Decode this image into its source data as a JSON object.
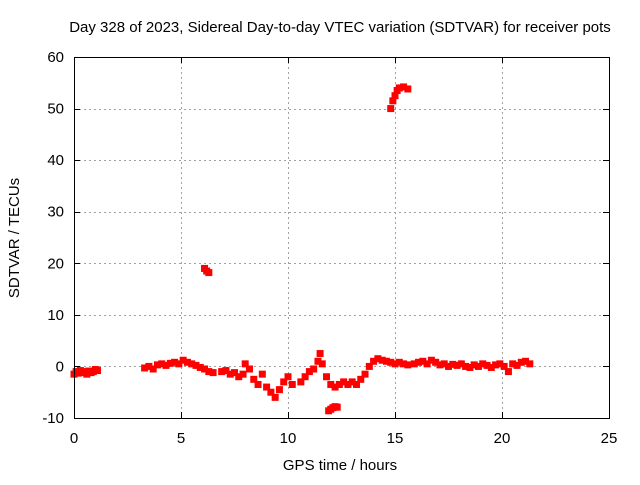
{
  "chart_data": {
    "type": "scatter",
    "title": "Day 328 of 2023, Sidereal Day-to-day VTEC variation (SDTVAR) for receiver pots",
    "xlabel": "GPS time / hours",
    "ylabel": "SDTVAR / TECUs",
    "xlim": [
      0,
      25
    ],
    "ylim": [
      -10,
      60
    ],
    "xticks": [
      0,
      5,
      10,
      15,
      20,
      25
    ],
    "yticks": [
      -10,
      0,
      10,
      20,
      30,
      40,
      50,
      60
    ],
    "xtick_labels": [
      "0",
      "5",
      "10",
      "15",
      "20",
      "25"
    ],
    "ytick_labels": [
      "-10",
      "0",
      "10",
      "20",
      "30",
      "40",
      "50",
      "60"
    ],
    "grid": true,
    "color": "#ff0000",
    "series": [
      {
        "name": "SDTVAR",
        "x": [
          0.0,
          0.1,
          0.2,
          0.3,
          0.4,
          0.5,
          0.6,
          0.7,
          0.8,
          0.9,
          1.0,
          1.1,
          3.3,
          3.5,
          3.7,
          3.9,
          4.1,
          4.3,
          4.5,
          4.7,
          4.9,
          5.1,
          5.3,
          5.5,
          5.7,
          5.9,
          6.1,
          6.3,
          6.5,
          6.1,
          6.2,
          6.3,
          6.9,
          7.1,
          7.3,
          7.5,
          7.7,
          7.9,
          8.0,
          8.2,
          8.4,
          8.6,
          8.8,
          9.0,
          9.2,
          9.4,
          9.6,
          9.8,
          10.0,
          10.2,
          10.6,
          10.8,
          11.0,
          11.2,
          11.4,
          11.5,
          11.6,
          11.8,
          12.0,
          12.2,
          12.4,
          12.6,
          12.8,
          13.0,
          13.2,
          13.4,
          11.9,
          12.0,
          12.1,
          12.2,
          12.3,
          13.6,
          13.8,
          14.0,
          14.2,
          14.4,
          14.6,
          14.8,
          15.0,
          15.2,
          15.4,
          15.6,
          14.8,
          14.9,
          15.0,
          15.1,
          15.2,
          15.4,
          15.6,
          15.9,
          16.1,
          16.3,
          16.5,
          16.7,
          16.9,
          17.1,
          17.3,
          17.5,
          17.7,
          17.9,
          18.1,
          18.3,
          18.5,
          18.7,
          18.9,
          19.1,
          19.3,
          19.5,
          19.7,
          19.9,
          20.1,
          20.3,
          20.5,
          20.7,
          20.9,
          21.1,
          21.3
        ],
        "y": [
          -1.5,
          -1.0,
          -1.3,
          -0.8,
          -1.2,
          -1.0,
          -1.5,
          -0.9,
          -1.2,
          -1.0,
          -0.6,
          -0.8,
          -0.3,
          0.0,
          -0.5,
          0.3,
          0.5,
          0.2,
          0.6,
          0.8,
          0.5,
          1.2,
          0.8,
          0.5,
          0.2,
          -0.2,
          -0.5,
          -1.0,
          -1.2,
          19.0,
          18.5,
          18.2,
          -1.0,
          -0.8,
          -1.5,
          -1.2,
          -2.0,
          -1.5,
          0.5,
          -0.5,
          -2.5,
          -3.5,
          -1.5,
          -4.0,
          -5.0,
          -6.0,
          -4.5,
          -3.0,
          -2.0,
          -3.5,
          -3.0,
          -2.0,
          -1.0,
          -0.5,
          1.0,
          2.5,
          0.5,
          -2.0,
          -3.5,
          -4.0,
          -3.5,
          -3.0,
          -3.5,
          -3.0,
          -3.5,
          -2.5,
          -8.6,
          -8.3,
          -8.0,
          -7.8,
          -7.9,
          -1.5,
          0.0,
          1.0,
          1.5,
          1.2,
          1.0,
          0.8,
          0.5,
          0.8,
          0.5,
          0.3,
          50.0,
          51.5,
          52.5,
          53.5,
          54.0,
          54.2,
          53.8,
          0.5,
          0.8,
          1.0,
          0.5,
          1.2,
          0.8,
          0.3,
          0.5,
          0.0,
          0.4,
          0.2,
          0.5,
          0.0,
          -0.2,
          0.3,
          0.0,
          0.5,
          0.2,
          -0.2,
          0.3,
          0.5,
          0.0,
          -1.0,
          0.5,
          0.2,
          0.8,
          1.0,
          0.5
        ]
      }
    ]
  }
}
